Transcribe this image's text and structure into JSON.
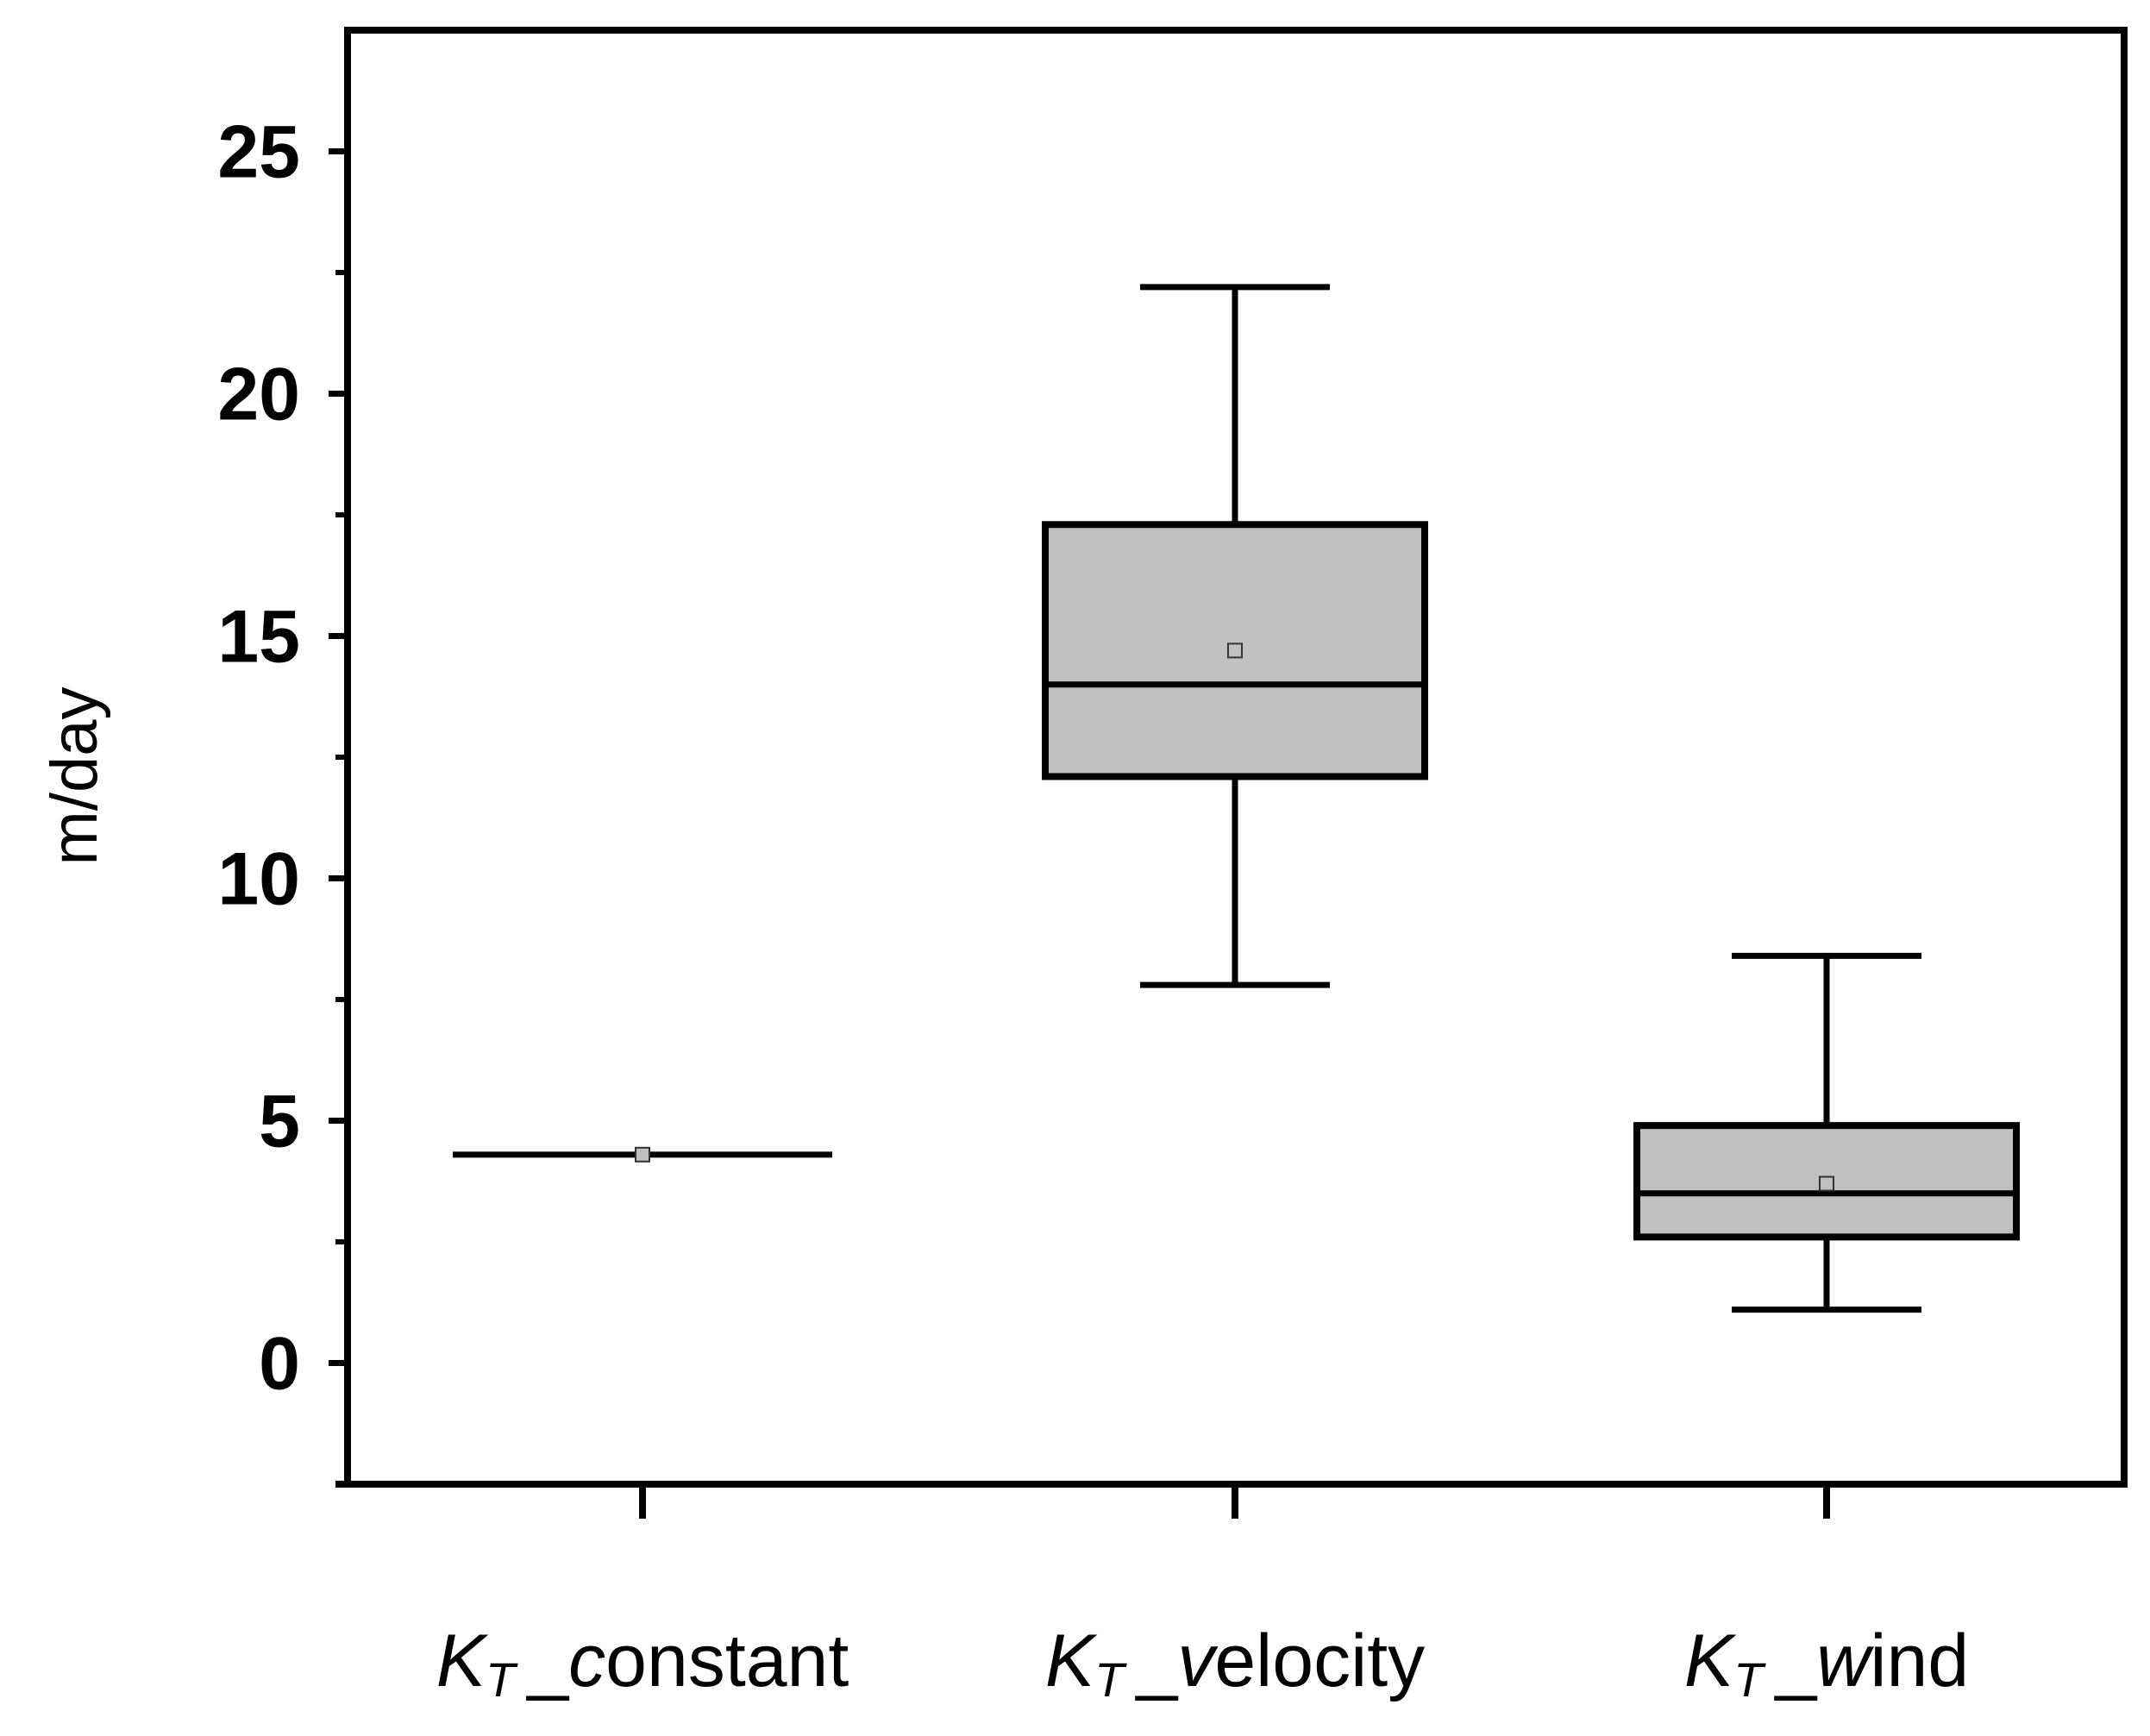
{
  "chart_data": {
    "type": "box",
    "title": "",
    "xlabel": "",
    "ylabel": "m/day",
    "ylim": [
      -2.5,
      27.5
    ],
    "yticks": [
      0,
      5,
      10,
      15,
      20,
      25
    ],
    "yticks_minor": [
      2.5,
      7.5,
      12.5,
      17.5,
      22.5
    ],
    "grid": false,
    "box_fill": "#c0c0c0",
    "line_color": "#000000",
    "categories": [
      {
        "prefix": "K",
        "sub": "T",
        "suffix": "_",
        "name": "constant",
        "italic_chars": "c",
        "normal_chars": "onstant"
      },
      {
        "prefix": "K",
        "sub": "T",
        "suffix": "_",
        "name": "velocity",
        "italic_chars": "v",
        "normal_chars": "elocity"
      },
      {
        "prefix": "K",
        "sub": "T",
        "suffix": "_",
        "name": "wind",
        "italic_chars": "w",
        "normal_chars": "ind"
      }
    ],
    "boxes": [
      {
        "whisker_low": 4.3,
        "q1": 4.3,
        "median": 4.3,
        "q3": 4.3,
        "whisker_high": 4.3,
        "mean": 4.3
      },
      {
        "whisker_low": 7.8,
        "q1": 12.1,
        "median": 14.0,
        "q3": 17.3,
        "whisker_high": 22.2,
        "mean": 14.7
      },
      {
        "whisker_low": 1.1,
        "q1": 2.6,
        "median": 3.5,
        "q3": 4.9,
        "whisker_high": 8.4,
        "mean": 3.7
      }
    ]
  }
}
